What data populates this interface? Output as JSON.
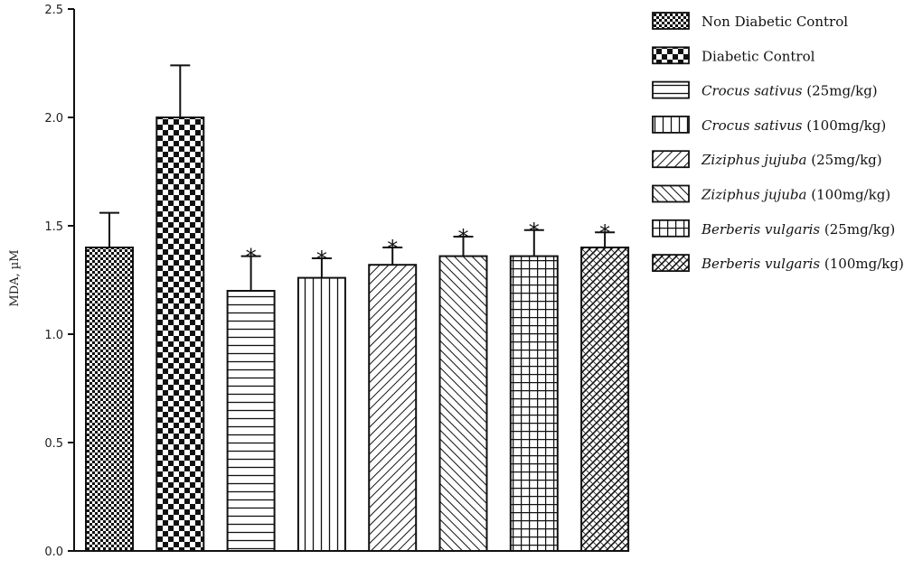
{
  "chart_data": {
    "type": "bar",
    "ylabel": "MDA, µM",
    "xlabel": "",
    "ylim": [
      0,
      2.5
    ],
    "yticks": [
      "0.0",
      "0.5",
      "1.0",
      "1.5",
      "2.0",
      "2.5"
    ],
    "grid": false,
    "legend_position": "right",
    "significance_marker": "*",
    "categories": [
      {
        "species": "",
        "rest": "Non Diabetic Control"
      },
      {
        "species": "",
        "rest": "Diabetic Control"
      },
      {
        "species": "Crocus sativus",
        "rest": " (25mg/kg)"
      },
      {
        "species": "Crocus sativus",
        "rest": " (100mg/kg)"
      },
      {
        "species": "Ziziphus jujuba",
        "rest": " (25mg/kg)"
      },
      {
        "species": "Ziziphus jujuba",
        "rest": " (100mg/kg)"
      },
      {
        "species": "Berberis vulgaris",
        "rest": " (25mg/kg)"
      },
      {
        "species": "Berberis vulgaris",
        "rest": " (100mg/kg)"
      }
    ],
    "values": [
      1.4,
      2.0,
      1.2,
      1.26,
      1.32,
      1.36,
      1.36,
      1.4
    ],
    "error": [
      0.16,
      0.24,
      0.16,
      0.09,
      0.08,
      0.09,
      0.12,
      0.07
    ],
    "significant": [
      false,
      false,
      true,
      true,
      true,
      true,
      true,
      true
    ],
    "patterns": [
      "fine-check",
      "checker",
      "hlines",
      "vlines",
      "diag-up",
      "diag-down",
      "grid",
      "diag-cross"
    ]
  },
  "colors": {
    "bar_fill": "#ffffff",
    "ink": "#111111"
  }
}
